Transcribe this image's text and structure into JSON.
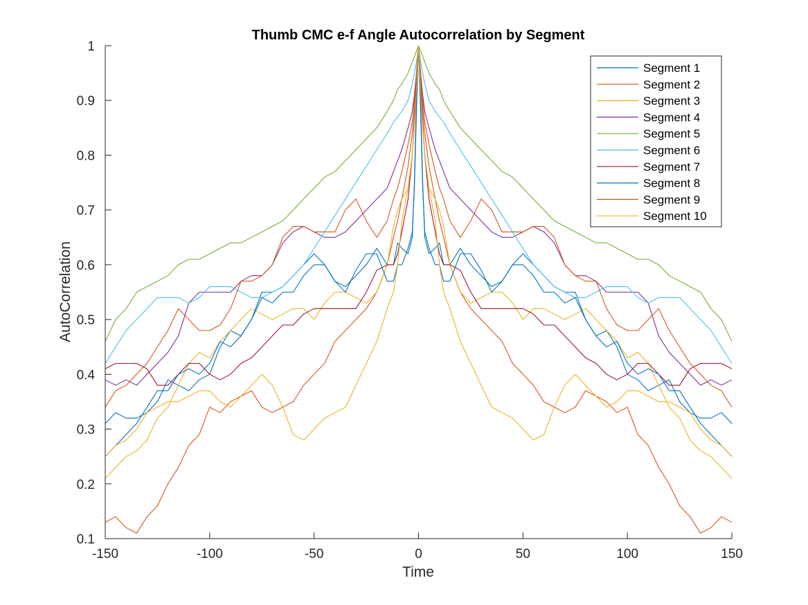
{
  "chart_data": {
    "type": "line",
    "title": "Thumb CMC e-f Angle Autocorrelation by Segment",
    "xlabel": "Time",
    "ylabel": "AutoCorrelation",
    "xlim": [
      -150,
      150
    ],
    "ylim": [
      0.1,
      1
    ],
    "xticks": [
      -150,
      -100,
      -50,
      0,
      50,
      100,
      150
    ],
    "xtick_labels": [
      "-150",
      "-100",
      "-50",
      "0",
      "50",
      "100",
      "150"
    ],
    "yticks": [
      0.1,
      0.2,
      0.3,
      0.4,
      0.5,
      0.6,
      0.7,
      0.8,
      0.9,
      1
    ],
    "ytick_labels": [
      "0.1",
      "0.2",
      "0.3",
      "0.4",
      "0.5",
      "0.6",
      "0.7",
      "0.8",
      "0.9",
      "1"
    ],
    "grid": false,
    "legend": "top-right",
    "symmetric": true,
    "x": [
      0,
      1,
      2,
      3,
      5,
      8,
      10,
      12,
      15,
      20,
      25,
      30,
      35,
      40,
      45,
      50,
      55,
      60,
      65,
      70,
      75,
      80,
      85,
      90,
      95,
      100,
      105,
      110,
      115,
      120,
      125,
      130,
      135,
      140,
      145,
      150
    ],
    "series": [
      {
        "name": "Segment 1",
        "color": "#0072BD",
        "values": [
          1.0,
          0.9,
          0.75,
          0.65,
          0.62,
          0.63,
          0.64,
          0.6,
          0.6,
          0.63,
          0.6,
          0.58,
          0.56,
          0.57,
          0.6,
          0.62,
          0.6,
          0.58,
          0.56,
          0.55,
          0.55,
          0.5,
          0.47,
          0.48,
          0.45,
          0.4,
          0.39,
          0.37,
          0.38,
          0.39,
          0.35,
          0.33,
          0.32,
          0.32,
          0.33,
          0.31
        ]
      },
      {
        "name": "Segment 2",
        "color": "#D95319",
        "values": [
          1.0,
          0.94,
          0.88,
          0.84,
          0.78,
          0.72,
          0.68,
          0.65,
          0.6,
          0.55,
          0.52,
          0.5,
          0.48,
          0.46,
          0.42,
          0.4,
          0.38,
          0.35,
          0.34,
          0.33,
          0.34,
          0.37,
          0.36,
          0.35,
          0.33,
          0.34,
          0.29,
          0.27,
          0.23,
          0.2,
          0.16,
          0.14,
          0.11,
          0.12,
          0.14,
          0.13
        ]
      },
      {
        "name": "Segment 3",
        "color": "#EDB120",
        "values": [
          1.0,
          0.93,
          0.86,
          0.8,
          0.74,
          0.72,
          0.7,
          0.67,
          0.6,
          0.55,
          0.53,
          0.54,
          0.55,
          0.55,
          0.53,
          0.5,
          0.52,
          0.52,
          0.51,
          0.5,
          0.51,
          0.52,
          0.5,
          0.48,
          0.46,
          0.43,
          0.44,
          0.42,
          0.38,
          0.34,
          0.32,
          0.28,
          0.26,
          0.25,
          0.23,
          0.21
        ]
      },
      {
        "name": "Segment 4",
        "color": "#7E2F8E",
        "values": [
          1.0,
          0.95,
          0.91,
          0.88,
          0.85,
          0.81,
          0.79,
          0.77,
          0.74,
          0.72,
          0.7,
          0.68,
          0.66,
          0.65,
          0.65,
          0.66,
          0.67,
          0.66,
          0.64,
          0.6,
          0.58,
          0.58,
          0.57,
          0.55,
          0.55,
          0.55,
          0.55,
          0.53,
          0.47,
          0.44,
          0.42,
          0.4,
          0.38,
          0.39,
          0.38,
          0.39
        ]
      },
      {
        "name": "Segment 5",
        "color": "#77AC30",
        "values": [
          1.0,
          0.99,
          0.98,
          0.97,
          0.95,
          0.93,
          0.92,
          0.9,
          0.88,
          0.85,
          0.83,
          0.81,
          0.79,
          0.77,
          0.76,
          0.74,
          0.72,
          0.7,
          0.68,
          0.67,
          0.66,
          0.65,
          0.64,
          0.64,
          0.63,
          0.62,
          0.61,
          0.61,
          0.6,
          0.58,
          0.57,
          0.56,
          0.55,
          0.52,
          0.5,
          0.46
        ]
      },
      {
        "name": "Segment 6",
        "color": "#4DBEEE",
        "values": [
          1.0,
          0.97,
          0.95,
          0.93,
          0.9,
          0.88,
          0.87,
          0.86,
          0.84,
          0.81,
          0.78,
          0.75,
          0.72,
          0.69,
          0.66,
          0.63,
          0.6,
          0.58,
          0.56,
          0.55,
          0.54,
          0.54,
          0.55,
          0.56,
          0.56,
          0.56,
          0.54,
          0.53,
          0.54,
          0.54,
          0.54,
          0.52,
          0.5,
          0.48,
          0.45,
          0.42
        ]
      },
      {
        "name": "Segment 7",
        "color": "#A2142F",
        "values": [
          1.0,
          0.93,
          0.86,
          0.8,
          0.72,
          0.66,
          0.62,
          0.6,
          0.6,
          0.59,
          0.55,
          0.52,
          0.52,
          0.52,
          0.52,
          0.52,
          0.51,
          0.49,
          0.49,
          0.47,
          0.45,
          0.43,
          0.42,
          0.4,
          0.39,
          0.4,
          0.42,
          0.42,
          0.4,
          0.38,
          0.38,
          0.41,
          0.42,
          0.42,
          0.42,
          0.41
        ]
      },
      {
        "name": "Segment 8",
        "color": "#0072BD",
        "values": [
          1.0,
          0.88,
          0.74,
          0.66,
          0.63,
          0.6,
          0.6,
          0.57,
          0.57,
          0.62,
          0.62,
          0.59,
          0.55,
          0.57,
          0.6,
          0.6,
          0.58,
          0.55,
          0.55,
          0.53,
          0.54,
          0.5,
          0.47,
          0.45,
          0.46,
          0.42,
          0.4,
          0.41,
          0.4,
          0.37,
          0.37,
          0.34,
          0.31,
          0.29,
          0.27,
          0.25
        ]
      },
      {
        "name": "Segment 9",
        "color": "#D95319",
        "values": [
          1.0,
          0.95,
          0.9,
          0.86,
          0.82,
          0.77,
          0.74,
          0.72,
          0.68,
          0.65,
          0.68,
          0.72,
          0.7,
          0.66,
          0.66,
          0.66,
          0.67,
          0.67,
          0.65,
          0.6,
          0.58,
          0.57,
          0.57,
          0.52,
          0.49,
          0.48,
          0.48,
          0.5,
          0.52,
          0.48,
          0.45,
          0.42,
          0.4,
          0.38,
          0.37,
          0.34
        ]
      },
      {
        "name": "Segment 10",
        "color": "#EDB120",
        "values": [
          1.0,
          0.92,
          0.85,
          0.8,
          0.74,
          0.68,
          0.6,
          0.55,
          0.52,
          0.46,
          0.42,
          0.38,
          0.34,
          0.33,
          0.32,
          0.3,
          0.28,
          0.29,
          0.34,
          0.38,
          0.4,
          0.38,
          0.36,
          0.34,
          0.35,
          0.37,
          0.37,
          0.36,
          0.35,
          0.35,
          0.34,
          0.33,
          0.3,
          0.28,
          0.27,
          0.25
        ]
      }
    ]
  }
}
